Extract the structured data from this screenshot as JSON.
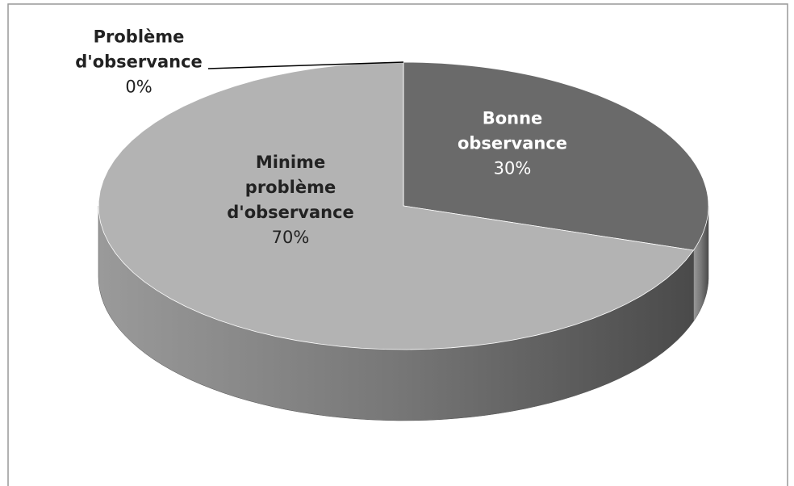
{
  "chart_data": {
    "type": "pie",
    "categories": [
      "Bonne observance",
      "Minime problème d'observance",
      "Problème d'observance"
    ],
    "values": [
      30,
      70,
      0
    ],
    "value_labels": [
      "30%",
      "70%",
      "0%"
    ],
    "colors": [
      "#6a6a6a",
      "#b3b3b3",
      "#8a8a8a"
    ]
  }
}
